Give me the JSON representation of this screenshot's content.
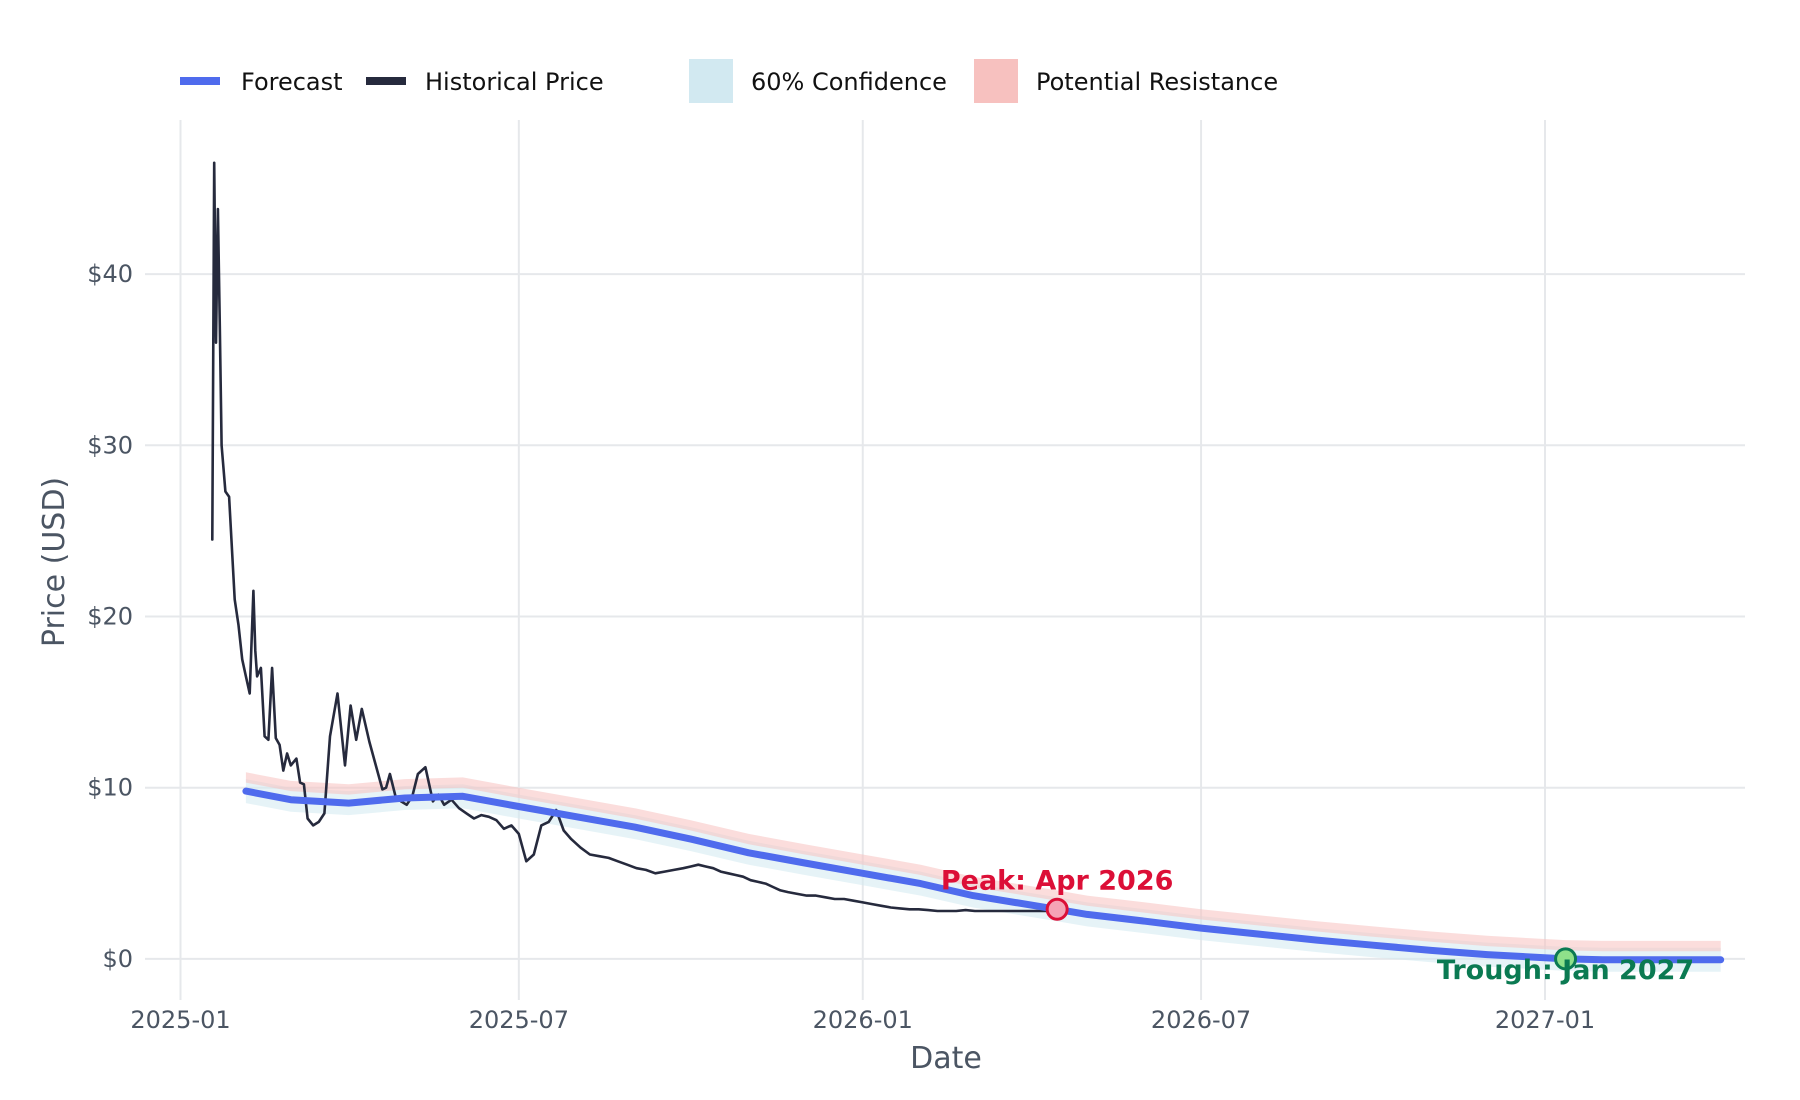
{
  "chart_data": {
    "type": "line",
    "title": "",
    "xlabel": "Date",
    "ylabel": "Price (USD)",
    "x_type": "date",
    "xlim": [
      "2024-12-13",
      "2027-04-18"
    ],
    "ylim": [
      -2.4,
      49
    ],
    "grid": true,
    "legend_placement": "top-left, horizontal",
    "x_ticks": [
      {
        "value": "2025-01-01",
        "label": "2025-01"
      },
      {
        "value": "2025-07-01",
        "label": "2025-07"
      },
      {
        "value": "2026-01-01",
        "label": "2026-01"
      },
      {
        "value": "2026-07-01",
        "label": "2026-07"
      },
      {
        "value": "2027-01-01",
        "label": "2027-01"
      }
    ],
    "y_ticks": [
      {
        "value": 0,
        "label": "$0"
      },
      {
        "value": 10,
        "label": "$10"
      },
      {
        "value": 20,
        "label": "$20"
      },
      {
        "value": 30,
        "label": "$30"
      },
      {
        "value": 40,
        "label": "$40"
      }
    ],
    "legend": [
      {
        "label": "Forecast",
        "kind": "line",
        "color": "#4f6bed"
      },
      {
        "label": "Historical Price",
        "kind": "line",
        "color": "#262a3d"
      },
      {
        "label": "60% Confidence",
        "kind": "area",
        "color": "#d2e9f1"
      },
      {
        "label": "Potential Resistance",
        "kind": "area",
        "color": "#f7c1bf"
      }
    ],
    "series": [
      {
        "name": "Historical Price",
        "color": "#262a3d",
        "x": [
          "2025-01-18",
          "2025-01-19",
          "2025-01-20",
          "2025-01-21",
          "2025-01-22",
          "2025-01-23",
          "2025-01-25",
          "2025-01-27",
          "2025-01-30",
          "2025-02-01",
          "2025-02-03",
          "2025-02-05",
          "2025-02-07",
          "2025-02-09",
          "2025-02-10",
          "2025-02-11",
          "2025-02-13",
          "2025-02-15",
          "2025-02-17",
          "2025-02-19",
          "2025-02-21",
          "2025-02-23",
          "2025-02-25",
          "2025-02-26",
          "2025-02-27",
          "2025-03-01",
          "2025-03-04",
          "2025-03-06",
          "2025-03-08",
          "2025-03-10",
          "2025-03-13",
          "2025-03-16",
          "2025-03-19",
          "2025-03-22",
          "2025-03-26",
          "2025-03-30",
          "2025-04-02",
          "2025-04-05",
          "2025-04-08",
          "2025-04-12",
          "2025-04-15",
          "2025-04-19",
          "2025-04-21",
          "2025-04-23",
          "2025-04-26",
          "2025-04-29",
          "2025-05-02",
          "2025-05-05",
          "2025-05-08",
          "2025-05-12",
          "2025-05-16",
          "2025-05-19",
          "2025-05-22",
          "2025-05-26",
          "2025-05-30",
          "2025-06-03",
          "2025-06-07",
          "2025-06-11",
          "2025-06-15",
          "2025-06-19",
          "2025-06-23",
          "2025-06-27",
          "2025-07-01",
          "2025-07-05",
          "2025-07-09",
          "2025-07-13",
          "2025-07-17",
          "2025-07-21",
          "2025-07-25",
          "2025-07-29",
          "2025-08-03",
          "2025-08-08",
          "2025-08-13",
          "2025-08-18",
          "2025-08-23",
          "2025-08-28",
          "2025-09-02",
          "2025-09-07",
          "2025-09-12",
          "2025-09-17",
          "2025-09-22",
          "2025-09-27",
          "2025-10-01",
          "2025-10-05",
          "2025-10-09",
          "2025-10-13",
          "2025-10-17",
          "2025-10-21",
          "2025-10-25",
          "2025-10-29",
          "2025-11-02",
          "2025-11-06",
          "2025-11-10",
          "2025-11-14",
          "2025-11-18",
          "2025-11-22",
          "2025-11-27",
          "2025-12-02",
          "2025-12-07",
          "2025-12-12",
          "2025-12-17",
          "2025-12-22",
          "2025-12-27",
          "2026-01-01",
          "2026-01-06",
          "2026-01-11",
          "2026-01-16",
          "2026-01-21",
          "2026-01-26",
          "2026-01-31",
          "2026-02-05",
          "2026-02-10",
          "2026-02-15",
          "2026-02-20",
          "2026-02-25",
          "2026-03-02",
          "2026-03-07",
          "2026-03-12",
          "2026-03-17",
          "2026-03-22",
          "2026-03-27",
          "2026-04-01",
          "2026-04-06",
          "2026-04-11"
        ],
        "y": [
          24.5,
          46.5,
          36.0,
          43.8,
          37.0,
          30.0,
          27.3,
          27.0,
          21.0,
          19.5,
          17.5,
          16.5,
          15.5,
          21.5,
          18.0,
          16.5,
          17.0,
          13.0,
          12.8,
          17.0,
          12.9,
          12.5,
          11.0,
          11.5,
          12.0,
          11.3,
          11.7,
          10.3,
          10.2,
          8.2,
          7.8,
          8.0,
          8.5,
          13.0,
          15.5,
          11.3,
          14.8,
          12.8,
          14.6,
          12.7,
          11.5,
          9.9,
          10.0,
          10.8,
          9.5,
          9.2,
          9.0,
          9.5,
          10.8,
          11.2,
          9.2,
          9.6,
          9.0,
          9.3,
          8.8,
          8.5,
          8.2,
          8.4,
          8.3,
          8.1,
          7.6,
          7.8,
          7.3,
          5.7,
          6.1,
          7.8,
          8.0,
          8.7,
          7.5,
          7.0,
          6.5,
          6.1,
          6.0,
          5.9,
          5.7,
          5.5,
          5.3,
          5.2,
          5.0,
          5.1,
          5.2,
          5.3,
          5.4,
          5.5,
          5.4,
          5.3,
          5.1,
          5.0,
          4.9,
          4.8,
          4.6,
          4.5,
          4.4,
          4.2,
          4.0,
          3.9,
          3.8,
          3.7,
          3.7,
          3.6,
          3.5,
          3.5,
          3.4,
          3.3,
          3.2,
          3.1,
          3.0,
          2.95,
          2.9,
          2.9,
          2.85,
          2.8,
          2.8,
          2.8,
          2.85,
          2.8,
          2.8,
          2.8,
          2.8,
          2.8,
          2.8,
          2.8,
          2.8,
          2.8
        ]
      },
      {
        "name": "Forecast",
        "color": "#4f6bed",
        "x": [
          "2025-02-05",
          "2025-03-01",
          "2025-04-01",
          "2025-05-01",
          "2025-06-01",
          "2025-07-01",
          "2025-08-01",
          "2025-09-01",
          "2025-10-01",
          "2025-11-01",
          "2025-12-01",
          "2026-01-01",
          "2026-02-01",
          "2026-03-01",
          "2026-04-15",
          "2026-05-01",
          "2026-06-01",
          "2026-07-01",
          "2026-08-01",
          "2026-09-01",
          "2026-10-01",
          "2026-11-01",
          "2026-12-01",
          "2027-01-12",
          "2027-02-01",
          "2027-03-01",
          "2027-04-05"
        ],
        "y": [
          9.8,
          9.3,
          9.1,
          9.4,
          9.5,
          8.9,
          8.3,
          7.7,
          7.0,
          6.2,
          5.6,
          5.0,
          4.4,
          3.7,
          2.9,
          2.6,
          2.2,
          1.8,
          1.45,
          1.1,
          0.8,
          0.5,
          0.25,
          0.0,
          -0.05,
          -0.05,
          -0.05
        ]
      }
    ],
    "bands": [
      {
        "name": "60% Confidence",
        "color": "#d2e9f1",
        "x": [
          "2025-02-05",
          "2025-03-01",
          "2025-04-01",
          "2025-05-01",
          "2025-06-01",
          "2025-07-01",
          "2025-08-01",
          "2025-09-01",
          "2025-10-01",
          "2025-11-01",
          "2025-12-01",
          "2026-01-01",
          "2026-02-01",
          "2026-03-01",
          "2026-04-15",
          "2026-05-01",
          "2026-06-01",
          "2026-07-01",
          "2026-08-01",
          "2026-09-01",
          "2026-10-01",
          "2026-11-01",
          "2026-12-01",
          "2027-01-12",
          "2027-02-01",
          "2027-03-01",
          "2027-04-05"
        ],
        "lower": [
          9.1,
          8.6,
          8.4,
          8.7,
          8.8,
          8.2,
          7.6,
          7.0,
          6.3,
          5.5,
          4.9,
          4.3,
          3.7,
          3.0,
          2.2,
          1.9,
          1.5,
          1.1,
          0.75,
          0.4,
          0.1,
          -0.2,
          -0.45,
          -0.7,
          -0.75,
          -0.75,
          -0.75
        ],
        "upper": [
          10.5,
          10.0,
          9.8,
          10.1,
          10.2,
          9.6,
          9.0,
          8.4,
          7.7,
          6.9,
          6.3,
          5.7,
          5.1,
          4.4,
          3.6,
          3.3,
          2.9,
          2.5,
          2.15,
          1.8,
          1.5,
          1.2,
          0.95,
          0.7,
          0.65,
          0.65,
          0.65
        ]
      },
      {
        "name": "Potential Resistance",
        "color": "#f7c1bf",
        "x": [
          "2025-02-05",
          "2025-03-01",
          "2025-04-01",
          "2025-05-01",
          "2025-06-01",
          "2025-07-01",
          "2025-08-01",
          "2025-09-01",
          "2025-10-01",
          "2025-11-01",
          "2025-12-01",
          "2026-01-01",
          "2026-02-01",
          "2026-03-01",
          "2026-04-15",
          "2026-05-01",
          "2026-06-01",
          "2026-07-01",
          "2026-08-01",
          "2026-09-01",
          "2026-10-01",
          "2026-11-01",
          "2026-12-01",
          "2027-01-12",
          "2027-02-01",
          "2027-03-01",
          "2027-04-05"
        ],
        "lower": [
          10.3,
          9.8,
          9.6,
          9.9,
          10.0,
          9.4,
          8.8,
          8.2,
          7.5,
          6.7,
          6.1,
          5.5,
          4.9,
          4.2,
          3.4,
          3.1,
          2.7,
          2.3,
          1.95,
          1.6,
          1.3,
          1.0,
          0.75,
          0.5,
          0.45,
          0.45,
          0.45
        ],
        "upper": [
          10.9,
          10.4,
          10.2,
          10.5,
          10.6,
          10.0,
          9.4,
          8.8,
          8.1,
          7.3,
          6.7,
          6.1,
          5.5,
          4.8,
          4.0,
          3.7,
          3.3,
          2.9,
          2.55,
          2.2,
          1.9,
          1.6,
          1.35,
          1.1,
          1.05,
          1.05,
          1.05
        ]
      }
    ],
    "annotations": [
      {
        "label": "Peak: Apr 2026",
        "x": "2026-04-15",
        "y": 2.9,
        "color": "#dc0f37",
        "marker_fill": "#f5a3b5"
      },
      {
        "label": "Trough: Jan 2027",
        "x": "2027-01-12",
        "y": 0.0,
        "color": "#0b7a52",
        "marker_fill": "#8fe08a"
      }
    ]
  }
}
